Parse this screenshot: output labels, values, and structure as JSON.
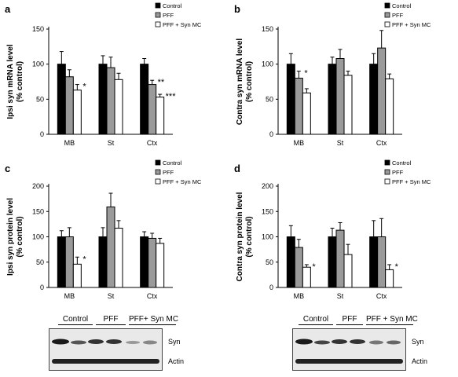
{
  "legend_labels": [
    "Control",
    "PFF",
    "PFF + Syn MC"
  ],
  "series_colors": {
    "Control": "#000000",
    "PFF": "#9a9a9a",
    "PFF + Syn MC": "#ffffff"
  },
  "chart_data": [
    {
      "panel": "a",
      "type": "bar",
      "ylabel": [
        "Ipsi syn mRNA level",
        "(% control)"
      ],
      "ylim": [
        0,
        150
      ],
      "yticks": [
        0,
        50,
        100,
        150
      ],
      "categories": [
        "MB",
        "St",
        "Ctx"
      ],
      "series": [
        {
          "name": "Control",
          "values": [
            100,
            100,
            100
          ],
          "errors": [
            18,
            12,
            8
          ]
        },
        {
          "name": "PFF",
          "values": [
            82,
            95,
            71
          ],
          "errors": [
            10,
            15,
            6
          ]
        },
        {
          "name": "PFF + Syn MC",
          "values": [
            63,
            78,
            53
          ],
          "errors": [
            8,
            9,
            4
          ]
        }
      ],
      "annotations": [
        {
          "category": 0,
          "series": 2,
          "text": "*"
        },
        {
          "category": 2,
          "series": 1,
          "text": "**"
        },
        {
          "category": 2,
          "series": 2,
          "text": "***"
        }
      ]
    },
    {
      "panel": "b",
      "type": "bar",
      "ylabel": [
        "Contra syn mRNA level",
        "(% control)"
      ],
      "ylim": [
        0,
        150
      ],
      "yticks": [
        0,
        50,
        100,
        150
      ],
      "categories": [
        "MB",
        "St",
        "Ctx"
      ],
      "series": [
        {
          "name": "Control",
          "values": [
            100,
            100,
            100
          ],
          "errors": [
            15,
            10,
            15
          ]
        },
        {
          "name": "PFF",
          "values": [
            80,
            108,
            123
          ],
          "errors": [
            10,
            13,
            25
          ]
        },
        {
          "name": "PFF + Syn MC",
          "values": [
            59,
            84,
            79
          ],
          "errors": [
            6,
            6,
            7
          ]
        }
      ],
      "annotations": [
        {
          "category": 0,
          "series": 1,
          "text": "*"
        }
      ]
    },
    {
      "panel": "c",
      "type": "bar",
      "ylabel": [
        "Ipsi syn protein level",
        "(% control)"
      ],
      "ylim": [
        0,
        200
      ],
      "yticks": [
        0,
        50,
        100,
        150,
        200
      ],
      "categories": [
        "MB",
        "St",
        "Ctx"
      ],
      "series": [
        {
          "name": "Control",
          "values": [
            100,
            100,
            100
          ],
          "errors": [
            12,
            18,
            10
          ]
        },
        {
          "name": "PFF",
          "values": [
            100,
            159,
            97
          ],
          "errors": [
            18,
            27,
            10
          ]
        },
        {
          "name": "PFF + Syn MC",
          "values": [
            46,
            117,
            87
          ],
          "errors": [
            14,
            15,
            10
          ]
        }
      ],
      "annotations": [
        {
          "category": 0,
          "series": 2,
          "text": "*"
        }
      ]
    },
    {
      "panel": "d",
      "type": "bar",
      "ylabel": [
        "Contra syn protein level",
        "(% control)"
      ],
      "ylim": [
        0,
        200
      ],
      "yticks": [
        0,
        50,
        100,
        150,
        200
      ],
      "categories": [
        "MB",
        "St",
        "Ctx"
      ],
      "series": [
        {
          "name": "Control",
          "values": [
            100,
            100,
            100
          ],
          "errors": [
            22,
            17,
            32
          ]
        },
        {
          "name": "PFF",
          "values": [
            79,
            113,
            100
          ],
          "errors": [
            16,
            15,
            36
          ]
        },
        {
          "name": "PFF + Syn MC",
          "values": [
            40,
            65,
            35
          ],
          "errors": [
            5,
            20,
            10
          ]
        }
      ],
      "annotations": [
        {
          "category": 0,
          "series": 2,
          "text": "*"
        },
        {
          "category": 2,
          "series": 2,
          "text": "*"
        }
      ]
    }
  ],
  "blots": [
    {
      "panel": "c",
      "lanes": [
        "Control",
        "PFF",
        "PFF+ Syn MC"
      ],
      "bands": [
        "Syn",
        "Actin"
      ]
    },
    {
      "panel": "d",
      "lanes": [
        "Control",
        "PFF",
        "PFF + Syn MC"
      ],
      "bands": [
        "Syn",
        "Actin"
      ]
    }
  ]
}
